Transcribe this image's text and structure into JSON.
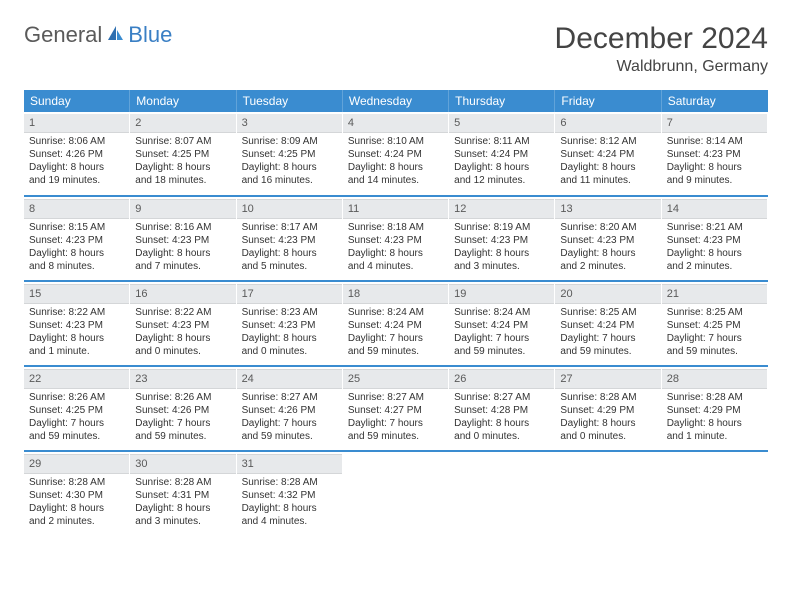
{
  "logo": {
    "text1": "General",
    "text2": "Blue"
  },
  "title": "December 2024",
  "location": "Waldbrunn, Germany",
  "colors": {
    "header_bg": "#3a8cd0",
    "daynum_bg": "#e7e9eb",
    "sep": "#3a8cd0",
    "logo_gray": "#5a5a5a",
    "logo_blue": "#3a7fc4"
  },
  "weekdays": [
    "Sunday",
    "Monday",
    "Tuesday",
    "Wednesday",
    "Thursday",
    "Friday",
    "Saturday"
  ],
  "weeks": [
    [
      {
        "n": "1",
        "sr": "Sunrise: 8:06 AM",
        "ss": "Sunset: 4:26 PM",
        "d1": "Daylight: 8 hours",
        "d2": "and 19 minutes."
      },
      {
        "n": "2",
        "sr": "Sunrise: 8:07 AM",
        "ss": "Sunset: 4:25 PM",
        "d1": "Daylight: 8 hours",
        "d2": "and 18 minutes."
      },
      {
        "n": "3",
        "sr": "Sunrise: 8:09 AM",
        "ss": "Sunset: 4:25 PM",
        "d1": "Daylight: 8 hours",
        "d2": "and 16 minutes."
      },
      {
        "n": "4",
        "sr": "Sunrise: 8:10 AM",
        "ss": "Sunset: 4:24 PM",
        "d1": "Daylight: 8 hours",
        "d2": "and 14 minutes."
      },
      {
        "n": "5",
        "sr": "Sunrise: 8:11 AM",
        "ss": "Sunset: 4:24 PM",
        "d1": "Daylight: 8 hours",
        "d2": "and 12 minutes."
      },
      {
        "n": "6",
        "sr": "Sunrise: 8:12 AM",
        "ss": "Sunset: 4:24 PM",
        "d1": "Daylight: 8 hours",
        "d2": "and 11 minutes."
      },
      {
        "n": "7",
        "sr": "Sunrise: 8:14 AM",
        "ss": "Sunset: 4:23 PM",
        "d1": "Daylight: 8 hours",
        "d2": "and 9 minutes."
      }
    ],
    [
      {
        "n": "8",
        "sr": "Sunrise: 8:15 AM",
        "ss": "Sunset: 4:23 PM",
        "d1": "Daylight: 8 hours",
        "d2": "and 8 minutes."
      },
      {
        "n": "9",
        "sr": "Sunrise: 8:16 AM",
        "ss": "Sunset: 4:23 PM",
        "d1": "Daylight: 8 hours",
        "d2": "and 7 minutes."
      },
      {
        "n": "10",
        "sr": "Sunrise: 8:17 AM",
        "ss": "Sunset: 4:23 PM",
        "d1": "Daylight: 8 hours",
        "d2": "and 5 minutes."
      },
      {
        "n": "11",
        "sr": "Sunrise: 8:18 AM",
        "ss": "Sunset: 4:23 PM",
        "d1": "Daylight: 8 hours",
        "d2": "and 4 minutes."
      },
      {
        "n": "12",
        "sr": "Sunrise: 8:19 AM",
        "ss": "Sunset: 4:23 PM",
        "d1": "Daylight: 8 hours",
        "d2": "and 3 minutes."
      },
      {
        "n": "13",
        "sr": "Sunrise: 8:20 AM",
        "ss": "Sunset: 4:23 PM",
        "d1": "Daylight: 8 hours",
        "d2": "and 2 minutes."
      },
      {
        "n": "14",
        "sr": "Sunrise: 8:21 AM",
        "ss": "Sunset: 4:23 PM",
        "d1": "Daylight: 8 hours",
        "d2": "and 2 minutes."
      }
    ],
    [
      {
        "n": "15",
        "sr": "Sunrise: 8:22 AM",
        "ss": "Sunset: 4:23 PM",
        "d1": "Daylight: 8 hours",
        "d2": "and 1 minute."
      },
      {
        "n": "16",
        "sr": "Sunrise: 8:22 AM",
        "ss": "Sunset: 4:23 PM",
        "d1": "Daylight: 8 hours",
        "d2": "and 0 minutes."
      },
      {
        "n": "17",
        "sr": "Sunrise: 8:23 AM",
        "ss": "Sunset: 4:23 PM",
        "d1": "Daylight: 8 hours",
        "d2": "and 0 minutes."
      },
      {
        "n": "18",
        "sr": "Sunrise: 8:24 AM",
        "ss": "Sunset: 4:24 PM",
        "d1": "Daylight: 7 hours",
        "d2": "and 59 minutes."
      },
      {
        "n": "19",
        "sr": "Sunrise: 8:24 AM",
        "ss": "Sunset: 4:24 PM",
        "d1": "Daylight: 7 hours",
        "d2": "and 59 minutes."
      },
      {
        "n": "20",
        "sr": "Sunrise: 8:25 AM",
        "ss": "Sunset: 4:24 PM",
        "d1": "Daylight: 7 hours",
        "d2": "and 59 minutes."
      },
      {
        "n": "21",
        "sr": "Sunrise: 8:25 AM",
        "ss": "Sunset: 4:25 PM",
        "d1": "Daylight: 7 hours",
        "d2": "and 59 minutes."
      }
    ],
    [
      {
        "n": "22",
        "sr": "Sunrise: 8:26 AM",
        "ss": "Sunset: 4:25 PM",
        "d1": "Daylight: 7 hours",
        "d2": "and 59 minutes."
      },
      {
        "n": "23",
        "sr": "Sunrise: 8:26 AM",
        "ss": "Sunset: 4:26 PM",
        "d1": "Daylight: 7 hours",
        "d2": "and 59 minutes."
      },
      {
        "n": "24",
        "sr": "Sunrise: 8:27 AM",
        "ss": "Sunset: 4:26 PM",
        "d1": "Daylight: 7 hours",
        "d2": "and 59 minutes."
      },
      {
        "n": "25",
        "sr": "Sunrise: 8:27 AM",
        "ss": "Sunset: 4:27 PM",
        "d1": "Daylight: 7 hours",
        "d2": "and 59 minutes."
      },
      {
        "n": "26",
        "sr": "Sunrise: 8:27 AM",
        "ss": "Sunset: 4:28 PM",
        "d1": "Daylight: 8 hours",
        "d2": "and 0 minutes."
      },
      {
        "n": "27",
        "sr": "Sunrise: 8:28 AM",
        "ss": "Sunset: 4:29 PM",
        "d1": "Daylight: 8 hours",
        "d2": "and 0 minutes."
      },
      {
        "n": "28",
        "sr": "Sunrise: 8:28 AM",
        "ss": "Sunset: 4:29 PM",
        "d1": "Daylight: 8 hours",
        "d2": "and 1 minute."
      }
    ],
    [
      {
        "n": "29",
        "sr": "Sunrise: 8:28 AM",
        "ss": "Sunset: 4:30 PM",
        "d1": "Daylight: 8 hours",
        "d2": "and 2 minutes."
      },
      {
        "n": "30",
        "sr": "Sunrise: 8:28 AM",
        "ss": "Sunset: 4:31 PM",
        "d1": "Daylight: 8 hours",
        "d2": "and 3 minutes."
      },
      {
        "n": "31",
        "sr": "Sunrise: 8:28 AM",
        "ss": "Sunset: 4:32 PM",
        "d1": "Daylight: 8 hours",
        "d2": "and 4 minutes."
      },
      null,
      null,
      null,
      null
    ]
  ]
}
